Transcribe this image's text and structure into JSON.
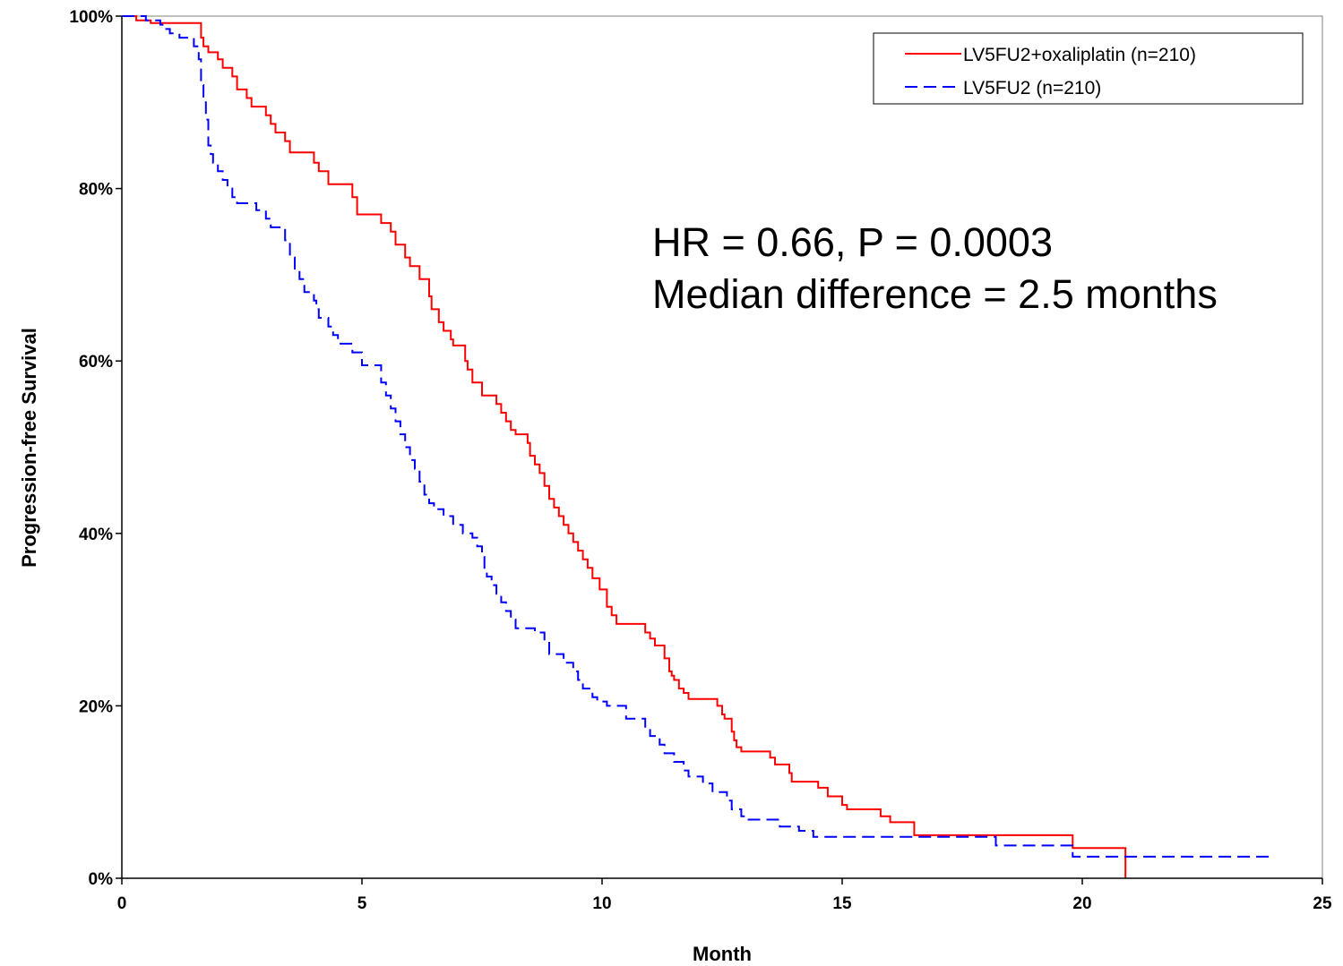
{
  "chart_data": {
    "type": "line",
    "title": "",
    "xlabel": "Month",
    "ylabel": "Progression-free Survival",
    "xlim": [
      0,
      25
    ],
    "ylim": [
      0,
      100
    ],
    "x_ticks": [
      0,
      5,
      10,
      15,
      20,
      25
    ],
    "x_tick_labels": [
      "0",
      "5",
      "10",
      "15",
      "20",
      "25"
    ],
    "y_ticks": [
      0,
      20,
      40,
      60,
      80,
      100
    ],
    "y_tick_labels": [
      "0%",
      "20%",
      "40%",
      "60%",
      "80%",
      "100%"
    ],
    "grid": false,
    "legend_position": "top-right",
    "annotations": [
      "HR = 0.66, P = 0.0003",
      "Median difference = 2.5 months"
    ],
    "series": [
      {
        "name": "LV5FU2+oxaliplatin (n=210)",
        "color": "#ff0000",
        "dash": "solid",
        "step": true,
        "points": [
          [
            0,
            100
          ],
          [
            0.3,
            99.5
          ],
          [
            0.6,
            99.2
          ],
          [
            1.6,
            99.2
          ],
          [
            1.65,
            97.5
          ],
          [
            1.7,
            96.5
          ],
          [
            1.8,
            95.8
          ],
          [
            2.0,
            95.0
          ],
          [
            2.1,
            94.0
          ],
          [
            2.3,
            93.0
          ],
          [
            2.4,
            91.5
          ],
          [
            2.6,
            90.5
          ],
          [
            2.7,
            89.5
          ],
          [
            3.0,
            88.5
          ],
          [
            3.1,
            87.5
          ],
          [
            3.2,
            86.5
          ],
          [
            3.4,
            85.5
          ],
          [
            3.5,
            84.2
          ],
          [
            4.0,
            83.0
          ],
          [
            4.1,
            82.0
          ],
          [
            4.3,
            80.5
          ],
          [
            4.8,
            79.0
          ],
          [
            4.9,
            77.0
          ],
          [
            5.4,
            76.0
          ],
          [
            5.6,
            75.0
          ],
          [
            5.7,
            73.5
          ],
          [
            5.9,
            72.0
          ],
          [
            6.0,
            71.0
          ],
          [
            6.2,
            69.5
          ],
          [
            6.4,
            67.5
          ],
          [
            6.45,
            66.0
          ],
          [
            6.6,
            64.5
          ],
          [
            6.7,
            63.5
          ],
          [
            6.85,
            62.5
          ],
          [
            6.9,
            61.8
          ],
          [
            7.15,
            60.0
          ],
          [
            7.2,
            59.0
          ],
          [
            7.3,
            57.5
          ],
          [
            7.5,
            56.0
          ],
          [
            7.8,
            55.0
          ],
          [
            7.9,
            54.0
          ],
          [
            8.0,
            53.0
          ],
          [
            8.1,
            52.0
          ],
          [
            8.2,
            51.5
          ],
          [
            8.45,
            50.5
          ],
          [
            8.5,
            49.0
          ],
          [
            8.6,
            48.0
          ],
          [
            8.7,
            47.0
          ],
          [
            8.8,
            45.5
          ],
          [
            8.9,
            44.0
          ],
          [
            9.0,
            43.0
          ],
          [
            9.1,
            42.0
          ],
          [
            9.2,
            41.0
          ],
          [
            9.3,
            40.0
          ],
          [
            9.4,
            39.0
          ],
          [
            9.5,
            38.0
          ],
          [
            9.6,
            37.0
          ],
          [
            9.7,
            36.0
          ],
          [
            9.8,
            34.8
          ],
          [
            9.95,
            33.5
          ],
          [
            10.1,
            31.5
          ],
          [
            10.2,
            30.5
          ],
          [
            10.3,
            29.5
          ],
          [
            10.9,
            28.5
          ],
          [
            11.0,
            27.8
          ],
          [
            11.1,
            27.0
          ],
          [
            11.3,
            25.5
          ],
          [
            11.4,
            24.0
          ],
          [
            11.45,
            23.5
          ],
          [
            11.5,
            23.0
          ],
          [
            11.6,
            22.0
          ],
          [
            11.7,
            21.5
          ],
          [
            11.8,
            20.8
          ],
          [
            12.4,
            20.0
          ],
          [
            12.5,
            19.0
          ],
          [
            12.55,
            18.5
          ],
          [
            12.7,
            17.0
          ],
          [
            12.75,
            16.0
          ],
          [
            12.8,
            15.2
          ],
          [
            12.9,
            14.7
          ],
          [
            13.5,
            14.0
          ],
          [
            13.6,
            13.2
          ],
          [
            13.9,
            12.2
          ],
          [
            13.95,
            11.2
          ],
          [
            14.5,
            10.5
          ],
          [
            14.7,
            9.5
          ],
          [
            15.0,
            8.5
          ],
          [
            15.1,
            8.0
          ],
          [
            15.8,
            7.2
          ],
          [
            16.0,
            6.5
          ],
          [
            16.5,
            5.0
          ],
          [
            19.8,
            3.5
          ],
          [
            20.9,
            0
          ]
        ]
      },
      {
        "name": "LV5FU2 (n=210)",
        "color": "#0000ff",
        "dash": "dashed",
        "step": true,
        "points": [
          [
            0,
            100
          ],
          [
            0.5,
            99.5
          ],
          [
            0.8,
            99.0
          ],
          [
            0.9,
            98.5
          ],
          [
            1.0,
            98.0
          ],
          [
            1.2,
            97.5
          ],
          [
            1.5,
            96.5
          ],
          [
            1.6,
            95.0
          ],
          [
            1.65,
            92.0
          ],
          [
            1.7,
            90.0
          ],
          [
            1.75,
            88.0
          ],
          [
            1.8,
            85.0
          ],
          [
            1.85,
            84.0
          ],
          [
            1.9,
            83.0
          ],
          [
            2.0,
            82.0
          ],
          [
            2.1,
            81.0
          ],
          [
            2.2,
            80.0
          ],
          [
            2.3,
            79.0
          ],
          [
            2.4,
            78.3
          ],
          [
            2.8,
            77.5
          ],
          [
            3.0,
            76.5
          ],
          [
            3.1,
            75.5
          ],
          [
            3.4,
            74.0
          ],
          [
            3.5,
            72.0
          ],
          [
            3.6,
            70.5
          ],
          [
            3.7,
            69.5
          ],
          [
            3.8,
            68.0
          ],
          [
            4.0,
            67.0
          ],
          [
            4.05,
            66.0
          ],
          [
            4.1,
            65.0
          ],
          [
            4.3,
            64.0
          ],
          [
            4.4,
            63.0
          ],
          [
            4.5,
            62.0
          ],
          [
            4.8,
            61.0
          ],
          [
            5.0,
            59.5
          ],
          [
            5.4,
            57.5
          ],
          [
            5.5,
            56.0
          ],
          [
            5.6,
            54.5
          ],
          [
            5.7,
            53.0
          ],
          [
            5.8,
            51.5
          ],
          [
            5.9,
            50.0
          ],
          [
            6.0,
            48.5
          ],
          [
            6.1,
            47.5
          ],
          [
            6.2,
            46.0
          ],
          [
            6.3,
            44.5
          ],
          [
            6.4,
            43.5
          ],
          [
            6.5,
            42.8
          ],
          [
            6.7,
            42.0
          ],
          [
            6.9,
            41.0
          ],
          [
            7.1,
            40.0
          ],
          [
            7.3,
            39.5
          ],
          [
            7.4,
            38.5
          ],
          [
            7.5,
            37.5
          ],
          [
            7.55,
            36.0
          ],
          [
            7.6,
            35.0
          ],
          [
            7.7,
            34.0
          ],
          [
            7.8,
            33.0
          ],
          [
            7.9,
            32.0
          ],
          [
            8.0,
            31.0
          ],
          [
            8.1,
            30.0
          ],
          [
            8.2,
            29.0
          ],
          [
            8.6,
            28.5
          ],
          [
            8.8,
            27.5
          ],
          [
            8.9,
            26.0
          ],
          [
            9.2,
            25.0
          ],
          [
            9.4,
            24.0
          ],
          [
            9.5,
            23.0
          ],
          [
            9.6,
            22.0
          ],
          [
            9.8,
            21.0
          ],
          [
            9.9,
            20.5
          ],
          [
            10.1,
            20.0
          ],
          [
            10.5,
            18.5
          ],
          [
            10.9,
            17.2
          ],
          [
            11.0,
            16.5
          ],
          [
            11.2,
            15.5
          ],
          [
            11.3,
            14.5
          ],
          [
            11.5,
            13.5
          ],
          [
            11.7,
            12.5
          ],
          [
            11.8,
            11.8
          ],
          [
            12.1,
            11.0
          ],
          [
            12.3,
            10.0
          ],
          [
            12.6,
            9.0
          ],
          [
            12.7,
            8.0
          ],
          [
            12.9,
            7.2
          ],
          [
            13.0,
            6.8
          ],
          [
            13.7,
            6.0
          ],
          [
            14.1,
            5.5
          ],
          [
            14.4,
            4.8
          ],
          [
            18.2,
            3.8
          ],
          [
            19.8,
            2.5
          ],
          [
            24.0,
            2.5
          ]
        ]
      }
    ]
  }
}
